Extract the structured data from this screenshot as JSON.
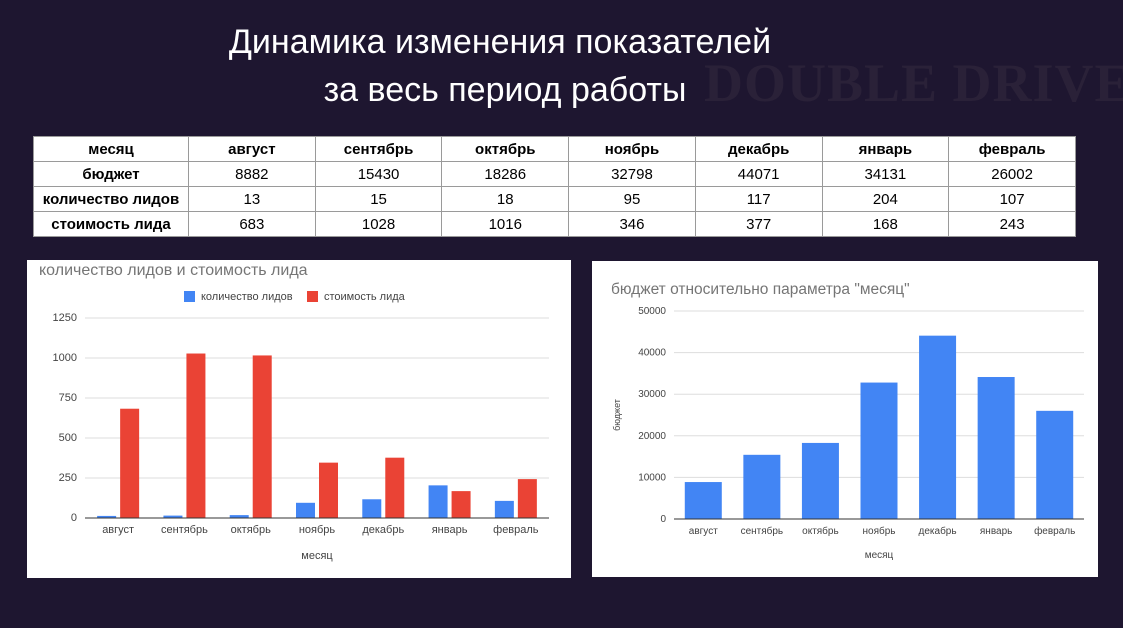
{
  "header": {
    "title_line1": "Динамика изменения показателей",
    "title_line2": "за весь период работы",
    "watermark": "DOUBLE DRIVE"
  },
  "table": {
    "header_label": "месяц",
    "months": [
      "август",
      "сентябрь",
      "октябрь",
      "ноябрь",
      "декабрь",
      "январь",
      "февраль"
    ],
    "rows": [
      {
        "label": "бюджет",
        "values": [
          "8882",
          "15430",
          "18286",
          "32798",
          "44071",
          "34131",
          "26002"
        ]
      },
      {
        "label": "количество лидов",
        "values": [
          "13",
          "15",
          "18",
          "95",
          "117",
          "204",
          "107"
        ]
      },
      {
        "label": "стоимость лида",
        "values": [
          "683",
          "1028",
          "1016",
          "346",
          "377",
          "168",
          "243"
        ]
      }
    ]
  },
  "chart_data": [
    {
      "type": "bar",
      "title": "количество лидов и стоимость лида",
      "xlabel": "месяц",
      "ylabel": "",
      "ylim": [
        0,
        1250
      ],
      "yticks": [
        "0",
        "250",
        "500",
        "750",
        "1000",
        "1250"
      ],
      "categories": [
        "август",
        "сентябрь",
        "октябрь",
        "ноябрь",
        "декабрь",
        "январь",
        "февраль"
      ],
      "series": [
        {
          "name": "количество лидов",
          "color": "#4285f4",
          "values": [
            13,
            15,
            18,
            95,
            117,
            204,
            107
          ]
        },
        {
          "name": "стоимость лида",
          "color": "#ea4335",
          "values": [
            683,
            1028,
            1016,
            346,
            377,
            168,
            243
          ]
        }
      ],
      "legend": "top",
      "grid": true
    },
    {
      "type": "bar",
      "title": "бюджет относительно параметра \"месяц\"",
      "xlabel": "месяц",
      "ylabel": "бюджет",
      "ylim": [
        0,
        50000
      ],
      "yticks": [
        "0",
        "10000",
        "20000",
        "30000",
        "40000",
        "50000"
      ],
      "categories": [
        "август",
        "сентябрь",
        "октябрь",
        "ноябрь",
        "декабрь",
        "январь",
        "февраль"
      ],
      "series": [
        {
          "name": "бюджет",
          "color": "#4285f4",
          "values": [
            8882,
            15430,
            18286,
            32798,
            44071,
            34131,
            26002
          ]
        }
      ],
      "grid": true
    }
  ]
}
